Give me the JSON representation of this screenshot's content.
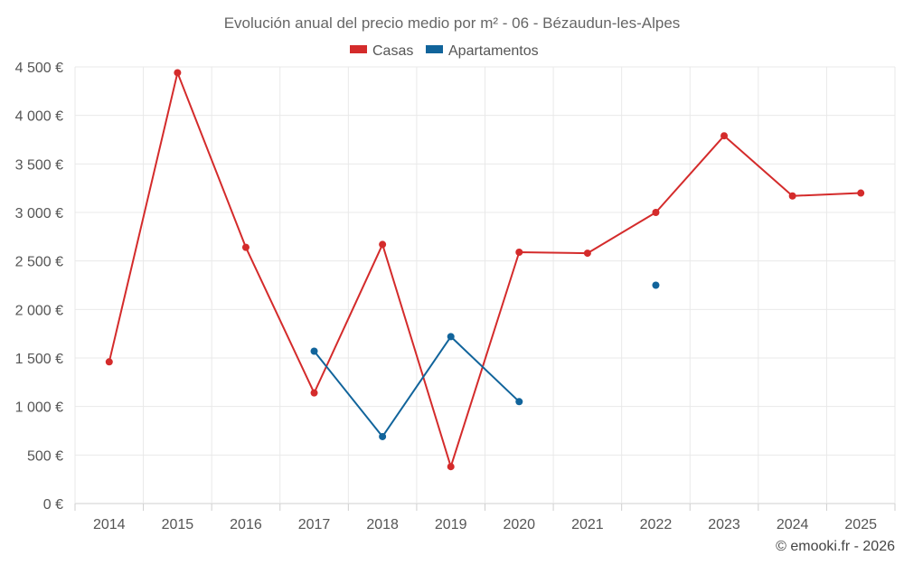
{
  "chart_data": {
    "type": "line",
    "title": "Evolución anual del precio medio por m² - 06 - Bézaudun-les-Alpes",
    "categories": [
      "2014",
      "2015",
      "2016",
      "2017",
      "2018",
      "2019",
      "2020",
      "2021",
      "2022",
      "2023",
      "2024",
      "2025"
    ],
    "series": [
      {
        "name": "Casas",
        "color": "#d42b2b",
        "values": [
          1460,
          4440,
          2640,
          1140,
          2670,
          380,
          2590,
          2580,
          3000,
          3790,
          3170,
          3200
        ]
      },
      {
        "name": "Apartamentos",
        "color": "#11649b",
        "values": [
          null,
          null,
          null,
          1570,
          690,
          1720,
          1050,
          null,
          2250,
          null,
          null,
          null
        ]
      }
    ],
    "ylim": [
      0,
      4500
    ],
    "yticks": [
      0,
      500,
      1000,
      1500,
      2000,
      2500,
      3000,
      3500,
      4000,
      4500
    ],
    "ytick_labels": [
      "0 €",
      "500 €",
      "1 000 €",
      "1 500 €",
      "2 000 €",
      "2 500 €",
      "3 000 €",
      "3 500 €",
      "4 000 €",
      "4 500 €"
    ],
    "xlabel": "",
    "ylabel": "",
    "legend": "top-center",
    "grid": true
  },
  "credit": "© emooki.fr - 2026"
}
